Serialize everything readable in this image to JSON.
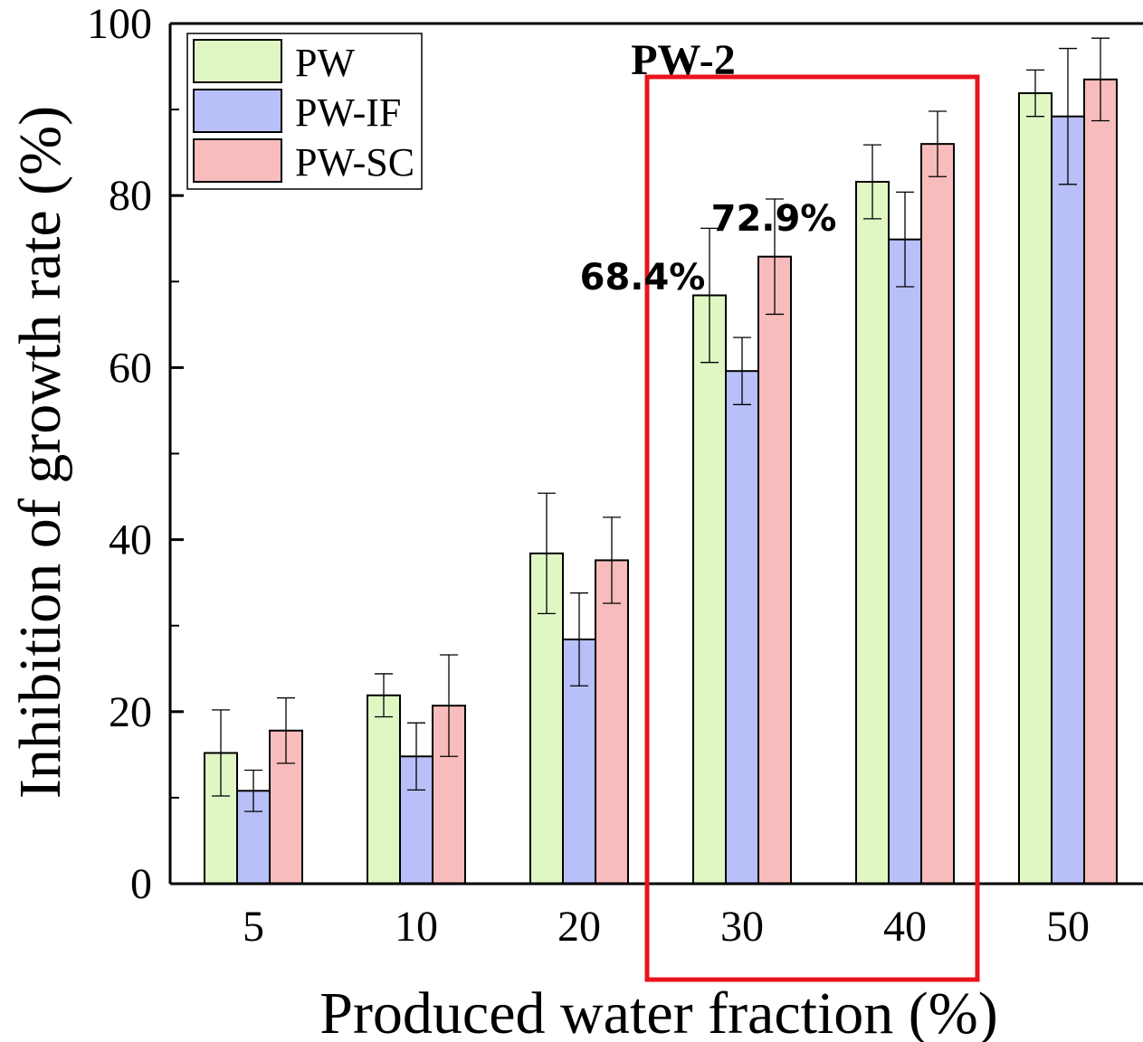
{
  "chart_data": {
    "type": "bar",
    "title": "",
    "xlabel": "Produced water fraction (%)",
    "ylabel": "Inhibition of growth rate (%)",
    "ylim": [
      0,
      100
    ],
    "yticks": [
      0,
      20,
      40,
      60,
      80,
      100
    ],
    "categories": [
      "5",
      "10",
      "20",
      "30",
      "40",
      "50"
    ],
    "series": [
      {
        "name": "PW",
        "color": "#e0f7c4",
        "values": [
          15.2,
          21.9,
          38.4,
          68.4,
          81.6,
          91.9
        ],
        "errors": [
          5.0,
          2.5,
          7.0,
          7.8,
          4.3,
          2.7
        ]
      },
      {
        "name": "PW-IF",
        "color": "#b9bff8",
        "values": [
          10.8,
          14.8,
          28.4,
          59.6,
          74.9,
          89.2
        ],
        "errors": [
          2.4,
          3.9,
          5.4,
          3.9,
          5.5,
          7.9
        ]
      },
      {
        "name": "PW-SC",
        "color": "#f8bcbc",
        "values": [
          17.8,
          20.7,
          37.6,
          72.9,
          86.0,
          93.5
        ],
        "errors": [
          3.8,
          5.9,
          5.0,
          6.7,
          3.8,
          4.8
        ]
      }
    ],
    "legend_position": "top-left",
    "grid": false,
    "annotations": {
      "group_label": "PW-2",
      "value_label_pw": "68.4%",
      "value_label_pwsc": "72.9%",
      "highlight_categories": [
        "30",
        "40"
      ],
      "highlight_color": "#e8141c"
    }
  }
}
